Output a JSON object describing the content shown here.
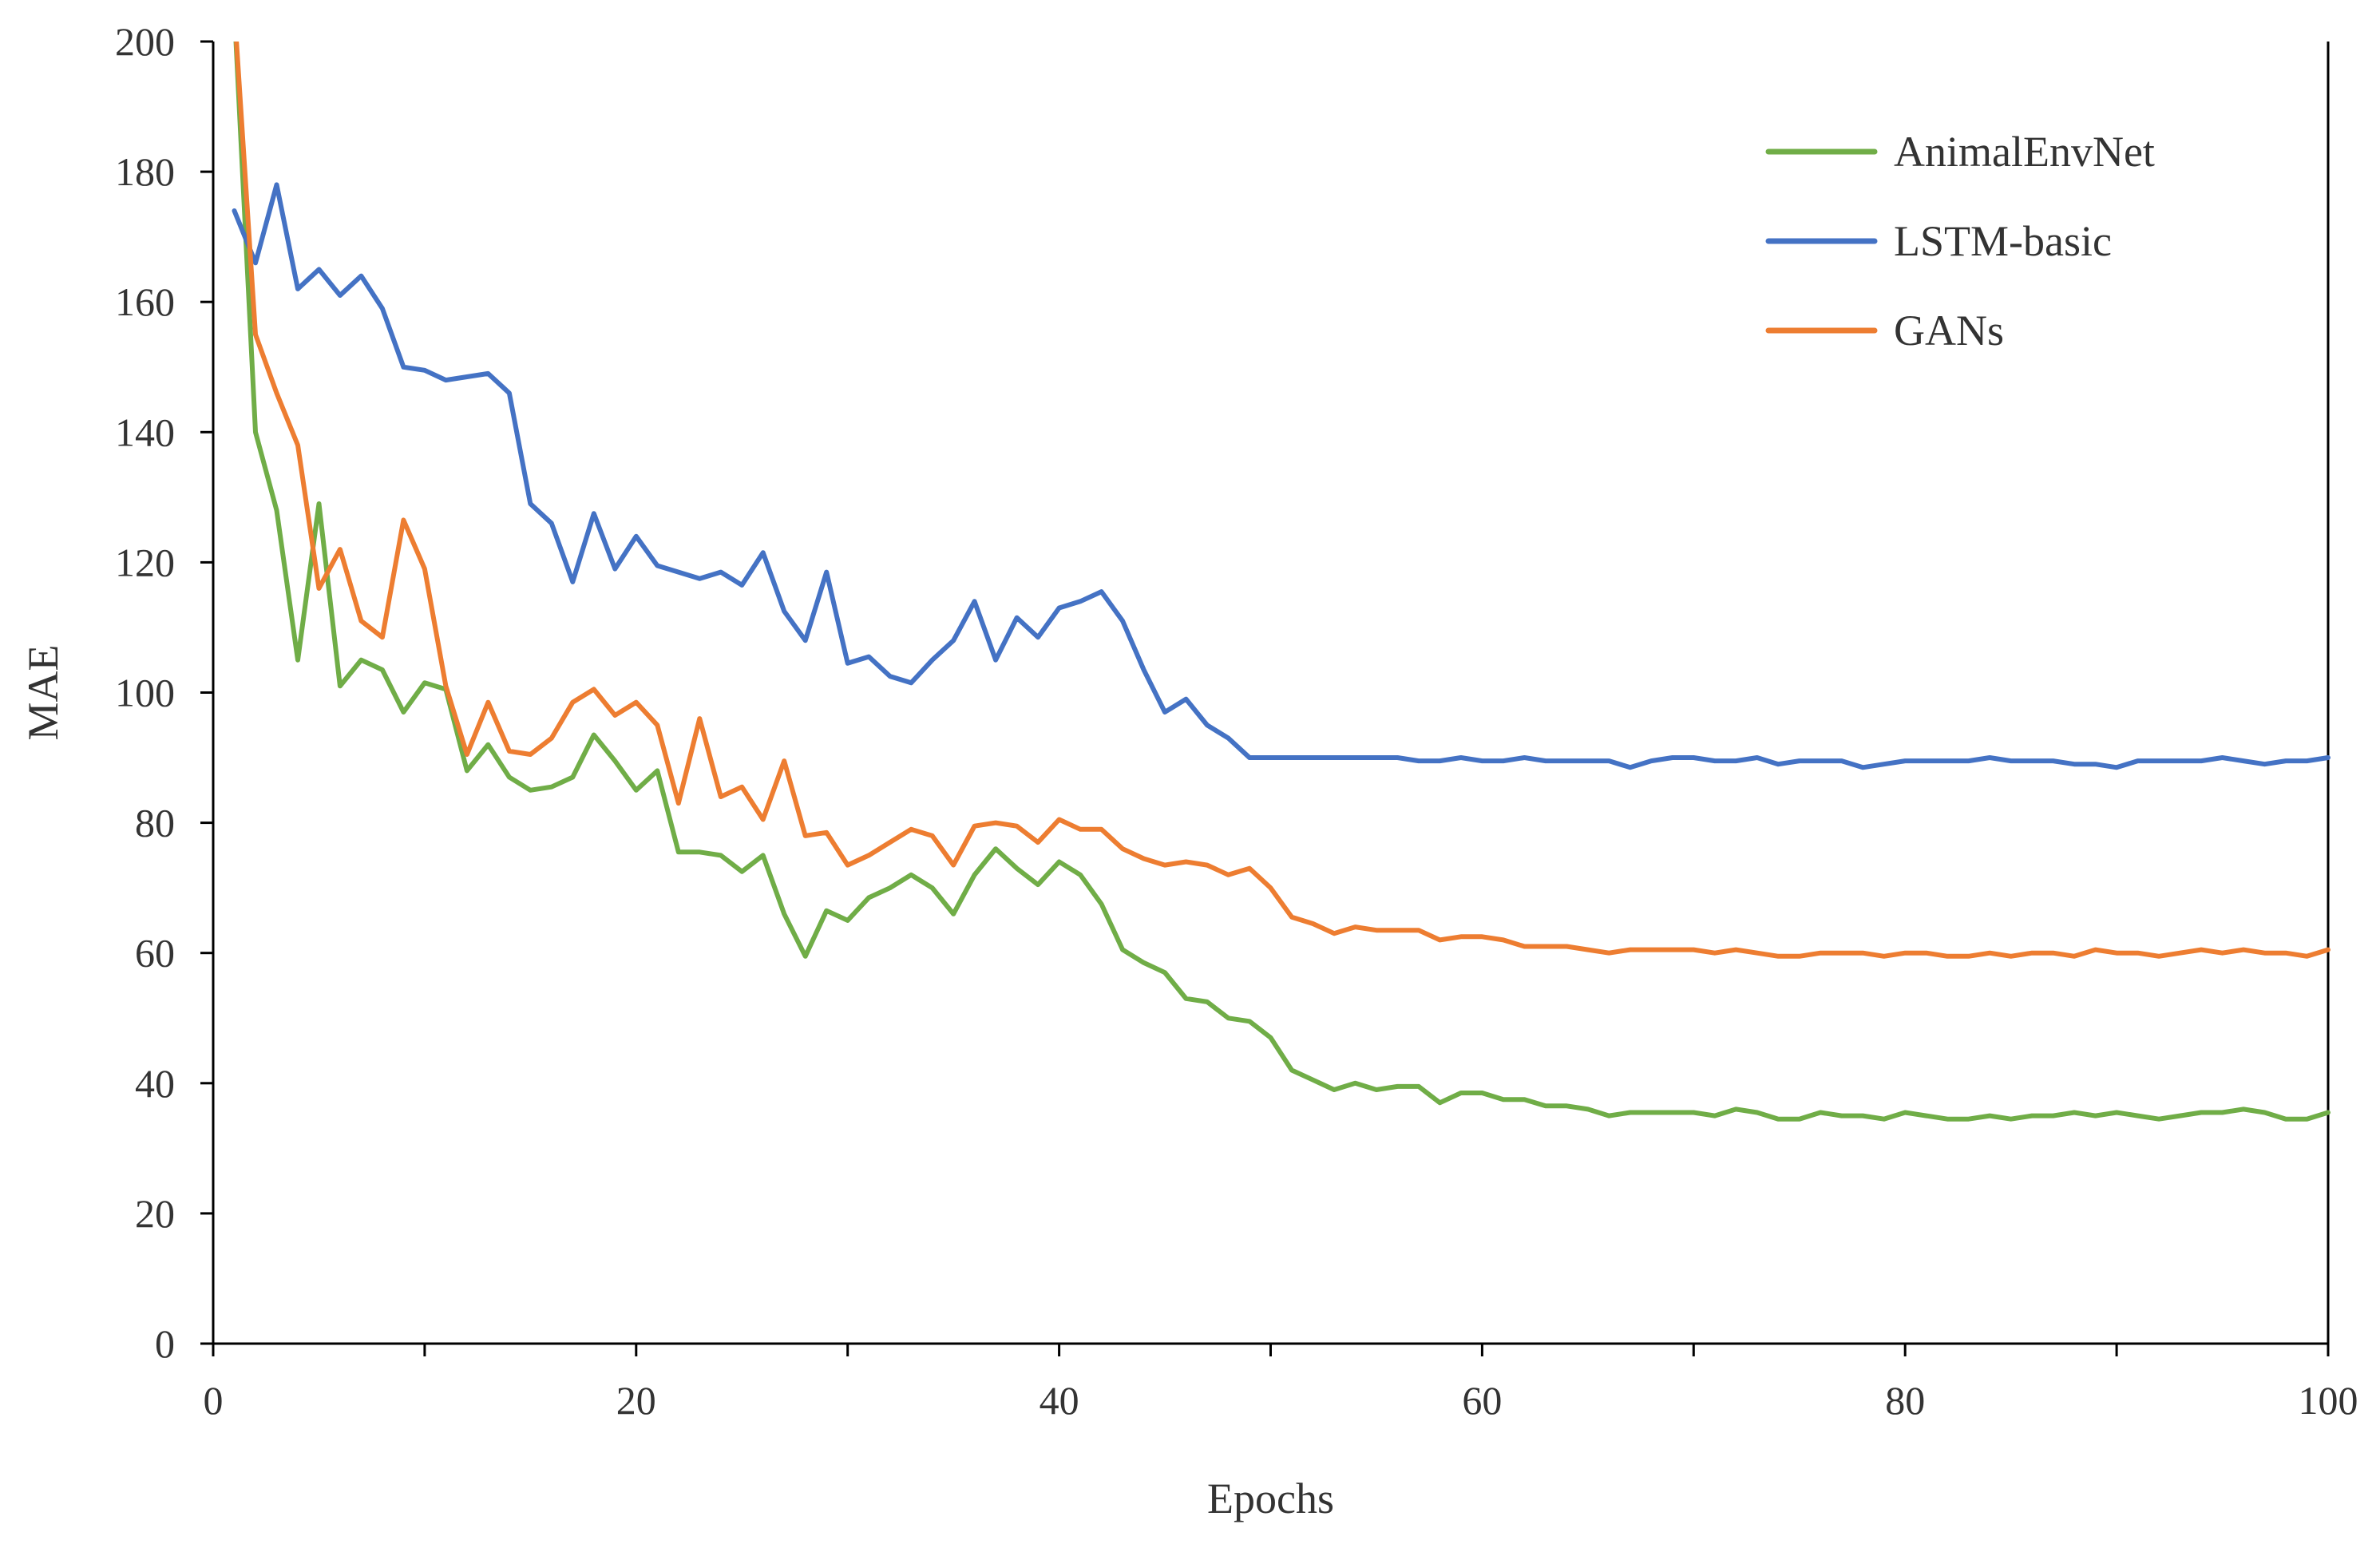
{
  "chart_data": {
    "type": "line",
    "title": "",
    "xlabel": "Epochs",
    "ylabel": "MAE",
    "xlim": [
      0,
      100
    ],
    "ylim": [
      0,
      200
    ],
    "x_ticks": [
      0,
      20,
      40,
      60,
      80,
      100
    ],
    "y_ticks": [
      0,
      20,
      40,
      60,
      80,
      100,
      120,
      140,
      160,
      180,
      200
    ],
    "grid": false,
    "legend_position": "top-right",
    "x": [
      1,
      2,
      3,
      4,
      5,
      6,
      7,
      8,
      9,
      10,
      11,
      12,
      13,
      14,
      15,
      16,
      17,
      18,
      19,
      20,
      21,
      22,
      23,
      24,
      25,
      26,
      27,
      28,
      29,
      30,
      31,
      32,
      33,
      34,
      35,
      36,
      37,
      38,
      39,
      40,
      41,
      42,
      43,
      44,
      45,
      46,
      47,
      48,
      49,
      50,
      51,
      52,
      53,
      54,
      55,
      56,
      57,
      58,
      59,
      60,
      61,
      62,
      63,
      64,
      65,
      66,
      67,
      68,
      69,
      70,
      71,
      72,
      73,
      74,
      75,
      76,
      77,
      78,
      79,
      80,
      81,
      82,
      83,
      84,
      85,
      86,
      87,
      88,
      89,
      90,
      91,
      92,
      93,
      94,
      95,
      96,
      97,
      98,
      99,
      100
    ],
    "series": [
      {
        "name": "AnimalEnvNet",
        "color": "#70ad47",
        "values": [
          205,
          140,
          128,
          105,
          129,
          101,
          105,
          103.5,
          97,
          101.5,
          100.5,
          88,
          92,
          87,
          85,
          85.5,
          87,
          93.5,
          89.5,
          85,
          88,
          75.5,
          75.5,
          75,
          72.5,
          75,
          66,
          59.5,
          66.5,
          65,
          68.5,
          70,
          72,
          70,
          66,
          72,
          76,
          73,
          70.5,
          74,
          72,
          67.5,
          60.5,
          58.5,
          57,
          53,
          52.5,
          50,
          49.5,
          47,
          42,
          40.5,
          39,
          40,
          39,
          39.5,
          39.5,
          37,
          38.5,
          38.5,
          37.5,
          37.5,
          36.5,
          36.5,
          36,
          35,
          35.5,
          35.5,
          35.5,
          35.5,
          35,
          36,
          35.5,
          34.5,
          34.5,
          35.5,
          35,
          35,
          34.5,
          35.5,
          35,
          34.5,
          34.5,
          35,
          34.5,
          35,
          35,
          35.5,
          35,
          35.5,
          35,
          34.5,
          35,
          35.5,
          35.5,
          36,
          35.5,
          34.5,
          34.5,
          35.5
        ]
      },
      {
        "name": "LSTM-basic",
        "color": "#4472c4",
        "values": [
          174,
          166,
          178,
          162,
          165,
          161,
          164,
          159,
          150,
          149.5,
          148,
          148.5,
          149,
          146,
          129,
          126,
          117,
          127.5,
          119,
          124,
          119.5,
          118.5,
          117.5,
          118.5,
          116.5,
          121.5,
          112.5,
          108,
          118.5,
          104.5,
          105.5,
          102.5,
          101.5,
          105,
          108,
          114,
          105,
          111.5,
          108.5,
          113,
          114,
          115.5,
          111,
          103.5,
          97,
          99,
          95,
          93,
          90,
          90,
          90,
          90,
          90,
          90,
          90,
          90,
          89.5,
          89.5,
          90,
          89.5,
          89.5,
          90,
          89.5,
          89.5,
          89.5,
          89.5,
          88.5,
          89.5,
          90,
          90,
          89.5,
          89.5,
          90,
          89,
          89.5,
          89.5,
          89.5,
          88.5,
          89,
          89.5,
          89.5,
          89.5,
          89.5,
          90,
          89.5,
          89.5,
          89.5,
          89,
          89,
          88.5,
          89.5,
          89.5,
          89.5,
          89.5,
          90,
          89.5,
          89,
          89.5,
          89.5,
          90
        ]
      },
      {
        "name": "GANs",
        "color": "#ed7d31",
        "values": [
          205,
          155,
          146,
          138,
          116,
          122,
          111,
          108.5,
          126.5,
          119,
          101,
          90.5,
          98.5,
          91,
          90.5,
          93,
          98.5,
          100.5,
          96.5,
          98.5,
          95,
          83,
          96,
          84,
          85.5,
          80.5,
          89.5,
          78,
          78.5,
          73.5,
          75,
          77,
          79,
          78,
          73.5,
          79.5,
          80,
          79.5,
          77,
          80.5,
          79,
          79,
          76,
          74.5,
          73.5,
          74,
          73.5,
          72,
          73,
          70,
          65.5,
          64.5,
          63,
          64,
          63.5,
          63.5,
          63.5,
          62,
          62.5,
          62.5,
          62,
          61,
          61,
          61,
          60.5,
          60,
          60.5,
          60.5,
          60.5,
          60.5,
          60,
          60.5,
          60,
          59.5,
          59.5,
          60,
          60,
          60,
          59.5,
          60,
          60,
          59.5,
          59.5,
          60,
          59.5,
          60,
          60,
          59.5,
          60.5,
          60,
          60,
          59.5,
          60,
          60.5,
          60,
          60.5,
          60,
          60,
          59.5,
          60.5
        ]
      }
    ]
  }
}
